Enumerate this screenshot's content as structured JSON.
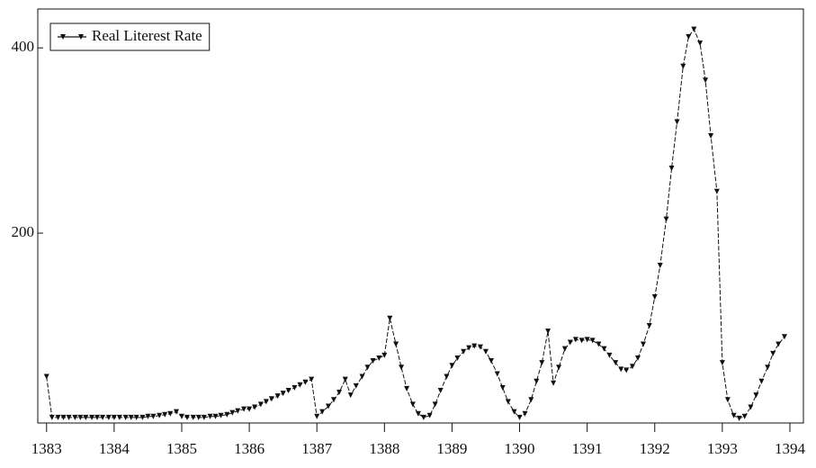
{
  "chart_data": {
    "type": "line",
    "x": [
      1383,
      1383.08,
      1383.17,
      1383.25,
      1383.33,
      1383.42,
      1383.5,
      1383.58,
      1383.67,
      1383.75,
      1383.83,
      1383.92,
      1384,
      1384.08,
      1384.17,
      1384.25,
      1384.33,
      1384.42,
      1384.5,
      1384.58,
      1384.67,
      1384.75,
      1384.83,
      1384.92,
      1385,
      1385.08,
      1385.17,
      1385.25,
      1385.33,
      1385.42,
      1385.5,
      1385.58,
      1385.67,
      1385.75,
      1385.83,
      1385.92,
      1386,
      1386.08,
      1386.17,
      1386.25,
      1386.33,
      1386.42,
      1386.5,
      1386.58,
      1386.67,
      1386.75,
      1386.83,
      1386.92,
      1387,
      1387.08,
      1387.17,
      1387.25,
      1387.33,
      1387.42,
      1387.5,
      1387.58,
      1387.67,
      1387.75,
      1387.83,
      1387.92,
      1388,
      1388.08,
      1388.17,
      1388.25,
      1388.33,
      1388.42,
      1388.5,
      1388.58,
      1388.67,
      1388.75,
      1388.83,
      1388.92,
      1389,
      1389.08,
      1389.17,
      1389.25,
      1389.33,
      1389.42,
      1389.5,
      1389.58,
      1389.67,
      1389.75,
      1389.83,
      1389.92,
      1390,
      1390.08,
      1390.17,
      1390.25,
      1390.33,
      1390.42,
      1390.5,
      1390.58,
      1390.67,
      1390.75,
      1390.83,
      1390.92,
      1391,
      1391.08,
      1391.17,
      1391.25,
      1391.33,
      1391.42,
      1391.5,
      1391.58,
      1391.67,
      1391.75,
      1391.83,
      1391.92,
      1392,
      1392.08,
      1392.17,
      1392.25,
      1392.33,
      1392.42,
      1392.5,
      1392.58,
      1392.67,
      1392.75,
      1392.83,
      1392.92,
      1393,
      1393.08,
      1393.17,
      1393.25,
      1393.33,
      1393.42,
      1393.5,
      1393.58,
      1393.67,
      1393.75,
      1393.83,
      1393.92
    ],
    "series": [
      {
        "name": "Real Literest Rate",
        "color": "#111111",
        "values": [
          45,
          1,
          1,
          1,
          1,
          1,
          1,
          1,
          1,
          1,
          1,
          1,
          1,
          1,
          1,
          1,
          1,
          1,
          2,
          2,
          3,
          4,
          5,
          7,
          2,
          1,
          1,
          1,
          1,
          2,
          2,
          3,
          4,
          6,
          8,
          10,
          10,
          12,
          15,
          18,
          21,
          24,
          27,
          30,
          33,
          36,
          39,
          42,
          2,
          7,
          13,
          20,
          28,
          42,
          25,
          35,
          45,
          55,
          62,
          65,
          68,
          108,
          80,
          55,
          32,
          15,
          5,
          1,
          3,
          15,
          30,
          45,
          57,
          65,
          72,
          76,
          78,
          77,
          72,
          62,
          48,
          33,
          18,
          7,
          1,
          5,
          20,
          40,
          60,
          94,
          38,
          55,
          75,
          82,
          85,
          84,
          85,
          84,
          80,
          75,
          68,
          60,
          53,
          52,
          56,
          65,
          80,
          100,
          131,
          165,
          215,
          270,
          320,
          380,
          412,
          420,
          405,
          365,
          305,
          245,
          60,
          20,
          3,
          0,
          2,
          12,
          25,
          40,
          55,
          70,
          80,
          88
        ]
      }
    ],
    "xlim": [
      1382.87,
      1394.2
    ],
    "ylim": [
      -5,
      442
    ],
    "xticks": [
      1383,
      1384,
      1385,
      1386,
      1387,
      1388,
      1389,
      1390,
      1391,
      1392,
      1393,
      1394
    ],
    "yticks": [
      200,
      400
    ],
    "legend": "top-left"
  }
}
